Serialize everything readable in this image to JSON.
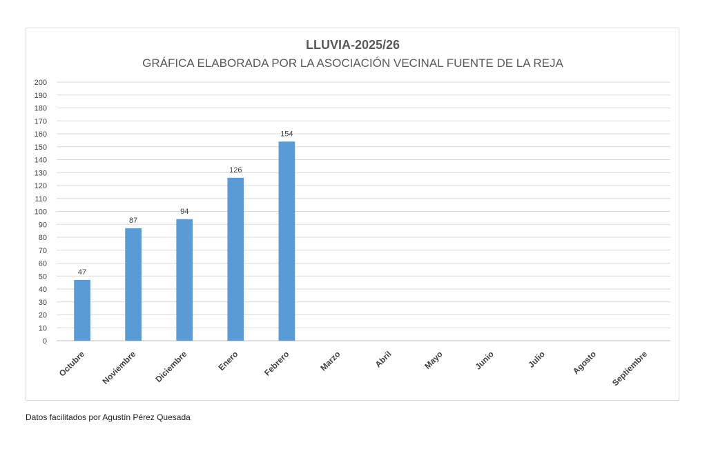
{
  "chart_data": {
    "type": "bar",
    "title": "LLUVIA-2025/26",
    "subtitle": "GRÁFICA ELABORADA POR LA ASOCIACIÓN VECINAL FUENTE DE LA REJA",
    "categories": [
      "Octubre",
      "Noviembre",
      "Diciembre",
      "Enero",
      "Febrero",
      "Marzo",
      "Abril",
      "Mayo",
      "Junio",
      "Julio",
      "Agosto",
      "Septiembre"
    ],
    "values": [
      47,
      87,
      94,
      126,
      154,
      null,
      null,
      null,
      null,
      null,
      null,
      null
    ],
    "ylim": [
      0,
      200
    ],
    "ytick_step": 10,
    "grid": true,
    "bar_color": "#5B9BD5",
    "data_labels": true
  },
  "footer": {
    "note": "Datos facilitados por Agustín Pérez Quesada"
  }
}
